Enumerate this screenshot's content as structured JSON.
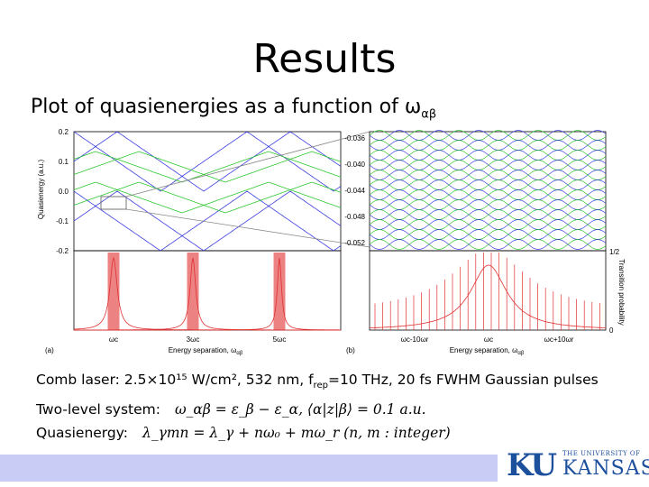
{
  "slide": {
    "title": "Results",
    "subtitle": "Plot of quasienergies as a function of ω",
    "subtitle_sub": "αβ",
    "lines": [
      {
        "label": "Comb laser: 2.5×10¹⁵ W/cm², 532 nm, f",
        "sub": "rep",
        "rest": "=10 THz, 20 fs FWHM Gaussian pulses"
      },
      {
        "label": "Two-level system:",
        "math": "ω_αβ = ε_β − ε_α,   ⟨α|z|β⟩ = 0.1 a.u."
      },
      {
        "label": "Quasienergy:",
        "math": "λ_γmn = λ_γ + nω₀ + mω_r    (n, m : integer)"
      }
    ]
  },
  "chart_data": [
    {
      "type": "line",
      "panel": "(a)",
      "ylabel": "Quasienergy (a.u.)",
      "ylim": [
        -0.2,
        0.2
      ],
      "yticks": [
        "0.2",
        "0.1",
        "0.0",
        "-0.1",
        "-0.2"
      ],
      "xlabel": "Energy separation, ω",
      "xlabel_sub": "αβ",
      "xticks": [
        "ωc",
        "3ωc",
        "5ωc"
      ],
      "series_colors": [
        "#3c3ce0",
        "#2ec82e",
        "#e03030"
      ],
      "peaks_at": [
        "ωc",
        "3ωc",
        "5ωc"
      ]
    },
    {
      "type": "line",
      "panel": "(b)",
      "ylim": [
        -0.052,
        -0.036
      ],
      "yticks": [
        "-0.036",
        "-0.040",
        "-0.044",
        "-0.048",
        "-0.052"
      ],
      "right_ylabel": "Transition probability",
      "right_yticks": [
        "1/2",
        "0"
      ],
      "xlabel": "Energy separation, ω",
      "xlabel_sub": "αβ",
      "xticks": [
        "ωc-10ωr",
        "ωc",
        "ωc+10ωr"
      ],
      "series_colors": [
        "#3c3ce0",
        "#2ec82e",
        "#e03030"
      ]
    }
  ],
  "footer": {
    "logo_ku": "KU",
    "logo_small": "THE UNIVERSITY OF",
    "logo_kansas": "KANSAS",
    "bar_color": "#c9ccf4",
    "brand_color": "#1c4f9c"
  }
}
